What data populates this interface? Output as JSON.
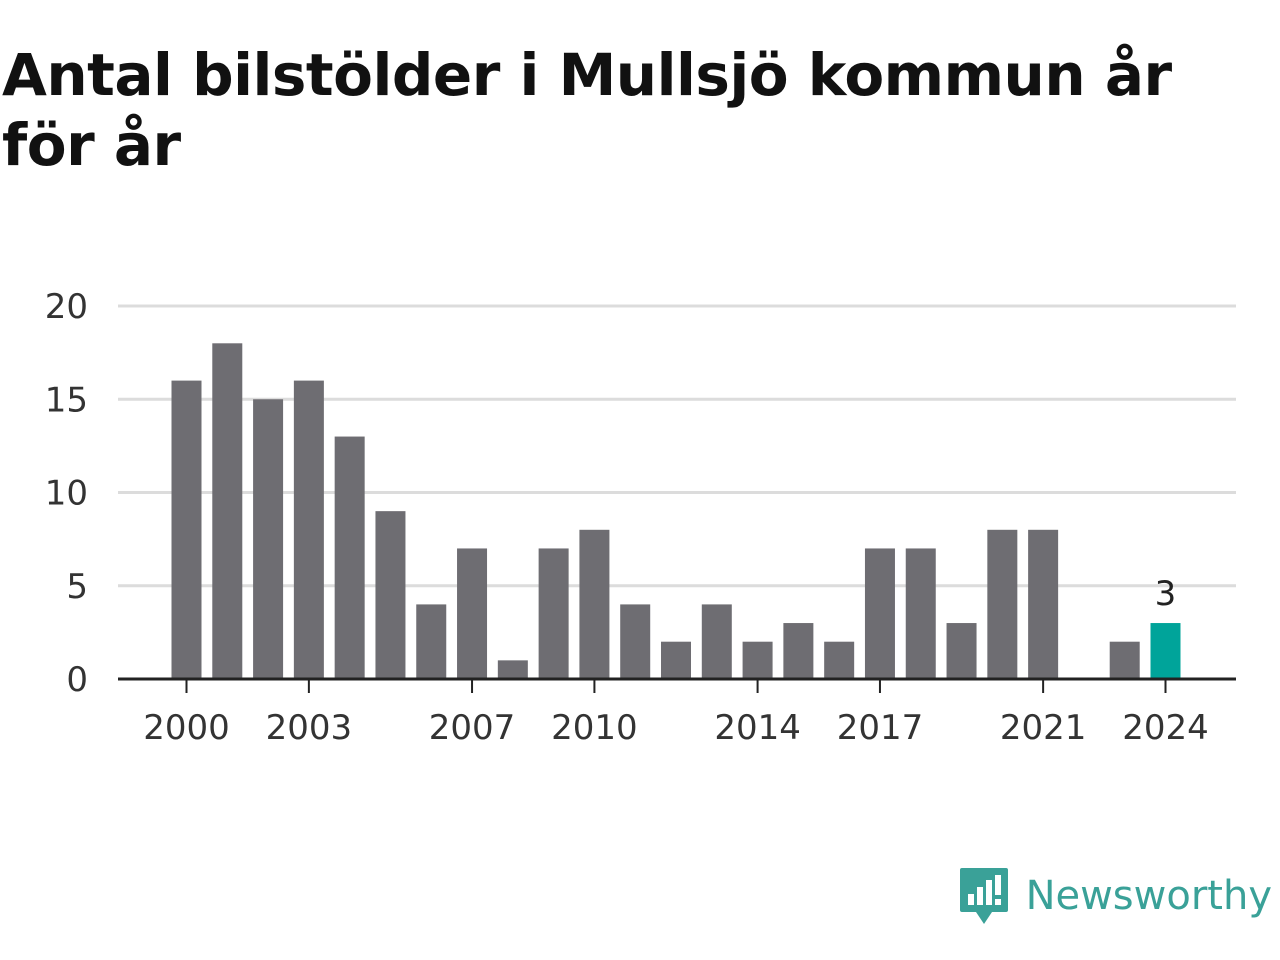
{
  "title": "Antal bilstölder i Mullsjö kommun år för år",
  "brand": {
    "name": "Newsworthy",
    "color": "#3aa198",
    "icon": "newsworthy-logo-icon"
  },
  "chart_data": {
    "type": "bar",
    "title": "Antal bilstölder i Mullsjö kommun år för år",
    "xlabel": "",
    "ylabel": "",
    "categories": [
      "2000",
      "2001",
      "2002",
      "2003",
      "2004",
      "2005",
      "2006",
      "2007",
      "2008",
      "2009",
      "2010",
      "2011",
      "2012",
      "2013",
      "2014",
      "2015",
      "2016",
      "2017",
      "2018",
      "2019",
      "2020",
      "2021",
      "2022",
      "2023",
      "2024"
    ],
    "values": [
      16,
      18,
      15,
      16,
      13,
      9,
      4,
      7,
      1,
      7,
      8,
      4,
      2,
      4,
      2,
      3,
      2,
      7,
      7,
      3,
      8,
      8,
      0,
      2,
      3
    ],
    "x_tick_labels": [
      "2000",
      "2003",
      "2007",
      "2010",
      "2014",
      "2017",
      "2021",
      "2024"
    ],
    "y_ticks": [
      0,
      5,
      10,
      15,
      20
    ],
    "ylim": [
      0,
      20
    ],
    "grid": true,
    "bar_color": "#6e6d72",
    "highlight_color": "#00a49a",
    "highlight_label": "3"
  }
}
